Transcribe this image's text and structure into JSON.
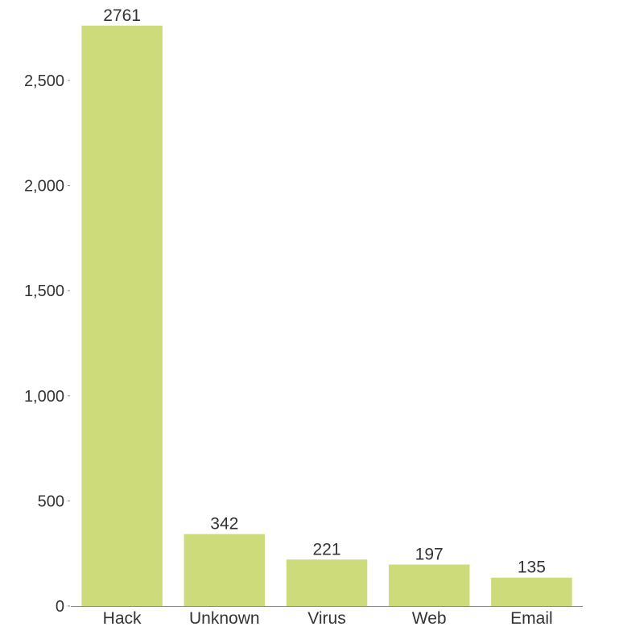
{
  "chart_data": {
    "type": "bar",
    "title": "",
    "xlabel": "",
    "ylabel": "",
    "categories": [
      "Hack",
      "Unknown",
      "Virus",
      "Web",
      "Email"
    ],
    "values": [
      2761,
      342,
      221,
      197,
      135
    ],
    "value_labels": [
      "2761",
      "342",
      "221",
      "197",
      "135"
    ],
    "ylim": [
      0,
      2800
    ],
    "yticks": [
      0,
      500,
      1000,
      1500,
      2000,
      2500
    ],
    "ytick_labels": [
      "0",
      "500",
      "1,000",
      "1,500",
      "2,000",
      "2,500"
    ],
    "grid": false,
    "legend": "none",
    "colors": {
      "bar": "#cddb7b",
      "axis": "#888888",
      "text": "#333333"
    }
  }
}
